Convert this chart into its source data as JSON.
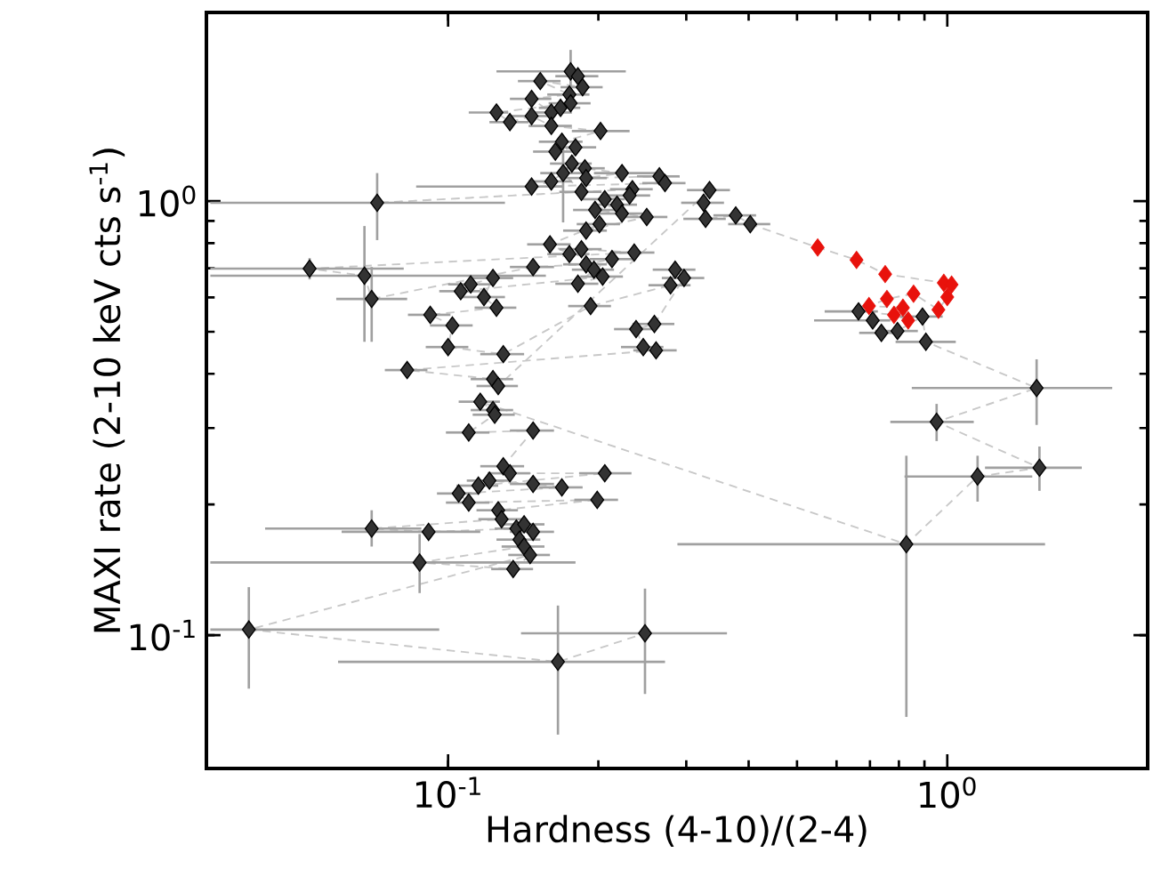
{
  "chart_data": {
    "type": "scatter",
    "xlabel": "Hardness (4-10)/(2-4)",
    "ylabel": "MAXI rate (2-10 keV cts s$^{-1}$)",
    "log": "xy",
    "xlim": [
      0.0328,
      2.52
    ],
    "ylim": [
      0.0493,
      2.72
    ],
    "xticks": [
      {
        "value": 0.1,
        "label": "10$^{-1}$"
      },
      {
        "value": 1,
        "label": "10$^{0}$"
      }
    ],
    "yticks": [
      {
        "value": 0.1,
        "label": "10$^{-1}$"
      },
      {
        "value": 1,
        "label": "10$^{0}$"
      }
    ],
    "marker": "diamond",
    "series": [
      {
        "type": "line",
        "line_style": "dashed",
        "marker": "none",
        "color": "#c8c8c8",
        "x": [
          0.176,
          0.182,
          0.186,
          0.153,
          0.175,
          0.147,
          0.161,
          0.168,
          0.176,
          0.125,
          0.133,
          0.147,
          0.161,
          0.202,
          0.169,
          0.164,
          0.18,
          0.177,
          0.188,
          0.223,
          0.189,
          0.265,
          0.272,
          0.147,
          0.161,
          0.17,
          0.185,
          0.0721,
          0.234,
          0.231,
          0.206,
          0.218,
          0.197,
          0.223,
          0.25,
          0.189,
          0.201,
          0.16,
          0.175,
          0.185,
          0.236,
          0.0528,
          0.068,
          0.0703,
          0.148,
          0.189,
          0.213,
          0.196,
          0.182,
          0.204,
          0.106,
          0.111,
          0.123,
          0.118,
          0.125,
          0.0921,
          0.102,
          0.1,
          0.129,
          0.193,
          0.279,
          0.285,
          0.297,
          0.259,
          0.238,
          0.246,
          0.261,
          0.0828,
          0.123,
          0.126,
          0.334,
          0.325,
          0.328,
          0.377,
          0.403,
          0.55,
          0.658,
          0.751,
          0.984,
          1.02,
          1.0,
          0.96,
          0.856,
          0.757,
          0.697,
          0.815,
          0.835,
          0.782,
          0.664,
          0.709,
          0.738,
          0.795,
          0.892,
          0.906,
          1.51,
          0.952,
          1.53,
          1.15,
          0.828,
          0.116,
          0.123,
          0.124,
          0.11,
          0.148,
          0.129,
          0.133,
          0.206,
          0.115,
          0.121,
          0.148,
          0.169,
          0.105,
          0.11,
          0.199,
          0.126,
          0.128,
          0.0703,
          0.0914,
          0.137,
          0.142,
          0.148,
          0.139,
          0.142,
          0.0877,
          0.135,
          0.146,
          0.0399,
          0.166,
          0.248
        ],
        "values": [
          1.99,
          1.94,
          1.83,
          1.89,
          1.76,
          1.72,
          1.6,
          1.64,
          1.68,
          1.6,
          1.52,
          1.57,
          1.49,
          1.45,
          1.37,
          1.3,
          1.33,
          1.22,
          1.19,
          1.16,
          1.13,
          1.14,
          1.1,
          1.08,
          1.11,
          1.16,
          1.05,
          0.991,
          1.065,
          1.03,
          1.01,
          0.981,
          0.954,
          0.936,
          0.919,
          0.855,
          0.885,
          0.795,
          0.755,
          0.775,
          0.761,
          0.699,
          0.673,
          0.595,
          0.705,
          0.715,
          0.735,
          0.695,
          0.645,
          0.67,
          0.62,
          0.643,
          0.665,
          0.601,
          0.568,
          0.547,
          0.517,
          0.461,
          0.444,
          0.573,
          0.64,
          0.695,
          0.665,
          0.521,
          0.507,
          0.461,
          0.453,
          0.408,
          0.389,
          0.375,
          1.06,
          0.991,
          0.91,
          0.927,
          0.885,
          0.782,
          0.732,
          0.679,
          0.648,
          0.642,
          0.601,
          0.562,
          0.612,
          0.595,
          0.573,
          0.568,
          0.531,
          0.547,
          0.557,
          0.531,
          0.497,
          0.502,
          0.542,
          0.474,
          0.371,
          0.31,
          0.243,
          0.232,
          0.162,
          0.345,
          0.33,
          0.322,
          0.293,
          0.296,
          0.245,
          0.236,
          0.236,
          0.221,
          0.227,
          0.223,
          0.219,
          0.212,
          0.202,
          0.205,
          0.194,
          0.185,
          0.176,
          0.173,
          0.176,
          0.18,
          0.173,
          0.166,
          0.16,
          0.147,
          0.142,
          0.153,
          0.103,
          0.0868,
          0.101
        ]
      },
      {
        "color": "#333333",
        "x": [
          0.176,
          0.182,
          0.186,
          0.153,
          0.175,
          0.147,
          0.161,
          0.168,
          0.176,
          0.125,
          0.133,
          0.147,
          0.161,
          0.202,
          0.169,
          0.164,
          0.18,
          0.177,
          0.188,
          0.223,
          0.189,
          0.265,
          0.272,
          0.147,
          0.161,
          0.17,
          0.185,
          0.0721,
          0.234,
          0.231,
          0.206,
          0.218,
          0.197,
          0.223,
          0.25,
          0.189,
          0.201,
          0.16,
          0.175,
          0.185,
          0.236,
          0.0528,
          0.068,
          0.0703,
          0.148,
          0.189,
          0.213,
          0.196,
          0.182,
          0.204,
          0.106,
          0.111,
          0.123,
          0.118,
          0.125,
          0.0921,
          0.102,
          0.1,
          0.129,
          0.193,
          0.279,
          0.285,
          0.297,
          0.259,
          0.238,
          0.246,
          0.261,
          0.0828,
          0.123,
          0.126,
          0.334,
          0.325,
          0.328,
          0.377,
          0.403,
          0.664,
          0.709,
          0.738,
          0.795,
          0.892,
          0.906,
          1.51,
          0.952,
          1.53,
          1.15,
          0.828,
          0.116,
          0.123,
          0.124,
          0.11,
          0.148,
          0.129,
          0.133,
          0.206,
          0.115,
          0.121,
          0.148,
          0.169,
          0.105,
          0.11,
          0.199,
          0.126,
          0.128,
          0.0703,
          0.0914,
          0.137,
          0.142,
          0.148,
          0.139,
          0.142,
          0.0877,
          0.135,
          0.146,
          0.0399,
          0.166,
          0.248
        ],
        "values": [
          1.99,
          1.94,
          1.83,
          1.89,
          1.76,
          1.72,
          1.6,
          1.64,
          1.68,
          1.6,
          1.52,
          1.57,
          1.49,
          1.45,
          1.37,
          1.3,
          1.33,
          1.22,
          1.19,
          1.16,
          1.13,
          1.14,
          1.1,
          1.08,
          1.11,
          1.16,
          1.05,
          0.991,
          1.065,
          1.03,
          1.01,
          0.981,
          0.954,
          0.936,
          0.919,
          0.855,
          0.885,
          0.795,
          0.755,
          0.775,
          0.761,
          0.699,
          0.673,
          0.595,
          0.705,
          0.715,
          0.735,
          0.695,
          0.645,
          0.67,
          0.62,
          0.643,
          0.665,
          0.601,
          0.568,
          0.547,
          0.517,
          0.461,
          0.444,
          0.573,
          0.64,
          0.695,
          0.665,
          0.521,
          0.507,
          0.461,
          0.453,
          0.408,
          0.389,
          0.375,
          1.06,
          0.991,
          0.91,
          0.927,
          0.885,
          0.557,
          0.531,
          0.497,
          0.502,
          0.542,
          0.474,
          0.371,
          0.31,
          0.243,
          0.232,
          0.162,
          0.345,
          0.33,
          0.322,
          0.293,
          0.296,
          0.245,
          0.236,
          0.236,
          0.221,
          0.227,
          0.223,
          0.219,
          0.212,
          0.202,
          0.205,
          0.194,
          0.185,
          0.176,
          0.173,
          0.176,
          0.18,
          0.173,
          0.166,
          0.16,
          0.147,
          0.142,
          0.153,
          0.103,
          0.0868,
          0.101
        ],
        "xerrors": [
          [
            0.125,
            0.227
          ],
          0.018,
          0.018,
          0.015,
          0.017,
          0.014,
          0.016,
          0.016,
          0.017,
          [
            0.11,
            0.132
          ],
          0.012,
          0.014,
          0.016,
          [
            0.177,
            0.231
          ],
          0.017,
          0.016,
          0.018,
          0.017,
          0.018,
          [
            0.196,
            0.263
          ],
          0.019,
          0.026,
          0.027,
          [
            0.0863,
            0.17
          ],
          0.016,
          0.017,
          0.018,
          [
            0.0334,
            0.13
          ],
          0.023,
          0.023,
          0.02,
          0.021,
          0.019,
          0.022,
          0.025,
          0.019,
          0.02,
          0.016,
          0.017,
          0.018,
          0.023,
          [
            0.0334,
            0.0815
          ],
          [
            0.0334,
            0.157
          ],
          [
            0.0597,
            0.0828
          ],
          0.015,
          0.019,
          0.021,
          0.019,
          0.018,
          0.02,
          0.01,
          0.011,
          0.012,
          0.012,
          0.012,
          0.009,
          0.01,
          0.0098,
          0.013,
          0.019,
          0.027,
          0.028,
          0.029,
          0.025,
          0.023,
          0.024,
          0.026,
          0.0081,
          0.012,
          0.012,
          0.033,
          0.032,
          0.032,
          0.037,
          0.039,
          [
            0.568,
            0.726
          ],
          [
            0.541,
            0.769
          ],
          0.072,
          0.078,
          0.087,
          [
            0.788,
            1.04
          ],
          [
            0.849,
            2.14
          ],
          [
            0.769,
            1.13
          ],
          [
            1.19,
            1.86
          ],
          [
            0.821,
            1.48
          ],
          [
            0.288,
            1.57
          ],
          0.011,
          0.012,
          0.012,
          0.011,
          0.015,
          0.013,
          0.013,
          [
            0.183,
            0.233
          ],
          0.011,
          0.012,
          0.015,
          0.017,
          0.01,
          0.011,
          0.02,
          0.012,
          0.013,
          [
            0.043,
            0.0884
          ],
          [
            0.0612,
            0.116
          ],
          0.013,
          0.014,
          0.015,
          0.014,
          0.014,
          [
            0.0334,
            0.18
          ],
          0.013,
          0.014,
          [
            0.0334,
            0.096
          ],
          [
            0.0602,
            0.272
          ],
          [
            0.14,
            0.362
          ]
        ],
        "errors": [
          [
            1.81,
            2.23
          ],
          null,
          null,
          null,
          null,
          null,
          null,
          null,
          null,
          null,
          null,
          null,
          null,
          null,
          null,
          null,
          null,
          null,
          null,
          null,
          null,
          null,
          null,
          null,
          null,
          [
            0.893,
            1.33
          ],
          null,
          [
            0.813,
            1.16
          ],
          null,
          null,
          null,
          null,
          null,
          null,
          null,
          null,
          null,
          null,
          null,
          null,
          null,
          [
            0.66,
            0.739
          ],
          [
            0.474,
            0.876
          ],
          [
            0.474,
            0.705
          ],
          null,
          null,
          null,
          null,
          null,
          null,
          null,
          null,
          null,
          null,
          null,
          null,
          null,
          null,
          null,
          null,
          null,
          null,
          null,
          null,
          null,
          null,
          null,
          null,
          null,
          null,
          null,
          null,
          null,
          null,
          null,
          null,
          null,
          null,
          null,
          null,
          null,
          [
            0.305,
            0.432
          ],
          [
            0.28,
            0.341
          ],
          [
            0.215,
            0.272
          ],
          [
            0.203,
            0.259
          ],
          [
            0.0648,
            0.259
          ],
          null,
          null,
          null,
          null,
          null,
          null,
          null,
          null,
          null,
          null,
          null,
          null,
          null,
          null,
          null,
          null,
          null,
          [
            0.16,
            0.194
          ],
          null,
          null,
          null,
          null,
          null,
          null,
          [
            0.125,
            0.171
          ],
          null,
          null,
          [
            0.0753,
            0.129
          ],
          [
            0.059,
            0.117
          ],
          [
            0.0732,
            0.128
          ]
        ]
      },
      {
        "color": "#e8120c",
        "x": [
          0.55,
          0.658,
          0.751,
          0.984,
          1.02,
          1.0,
          0.96,
          0.856,
          0.757,
          0.697,
          0.815,
          0.835,
          0.782
        ],
        "values": [
          0.782,
          0.732,
          0.679,
          0.648,
          0.642,
          0.601,
          0.562,
          0.612,
          0.595,
          0.573,
          0.568,
          0.531,
          0.547
        ]
      }
    ]
  }
}
